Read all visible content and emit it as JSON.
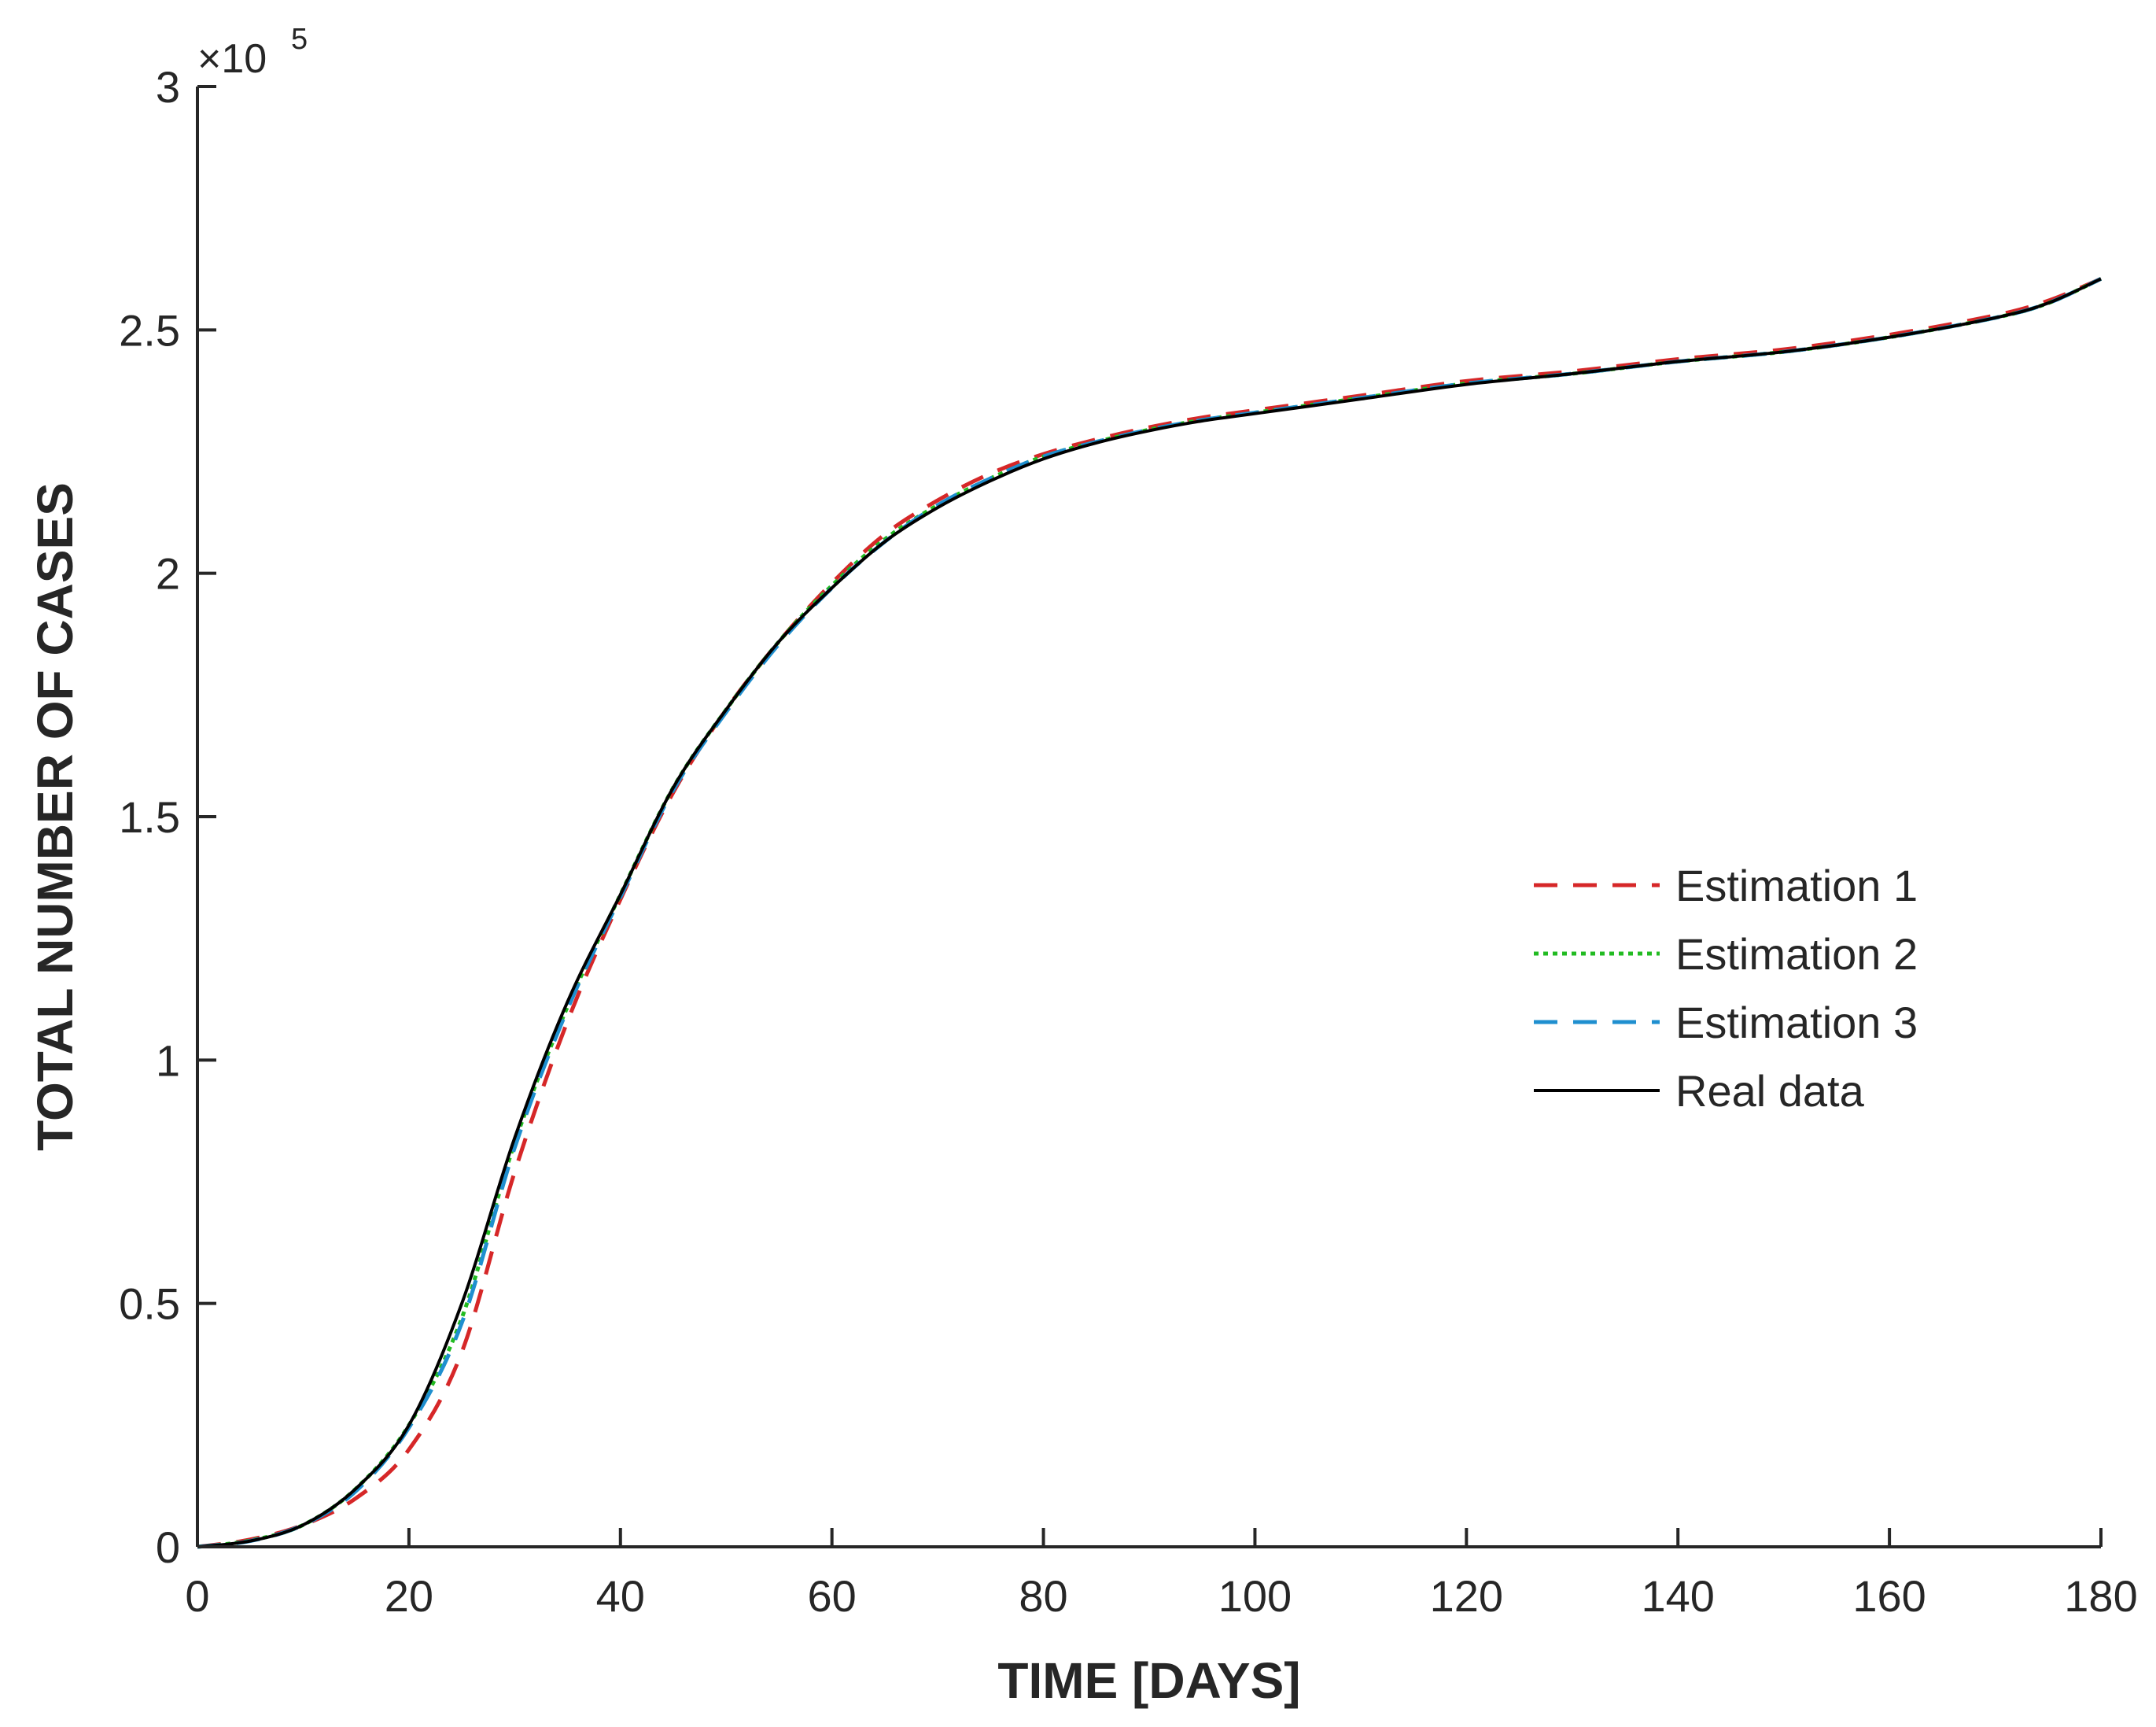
{
  "chart_data": {
    "type": "line",
    "title": "",
    "xlabel": "TIME [DAYS]",
    "ylabel": "TOTAL NUMBER OF CASES",
    "xlim": [
      0,
      180
    ],
    "ylim": [
      0,
      3
    ],
    "y_multiplier_base": "×10",
    "y_multiplier_exp": "5",
    "x_ticks": [
      "0",
      "20",
      "40",
      "60",
      "80",
      "100",
      "120",
      "140",
      "160",
      "180"
    ],
    "y_ticks": [
      "0",
      "0.5",
      "1",
      "1.5",
      "2",
      "2.5",
      "3"
    ],
    "grid": false,
    "legend_position": "right",
    "x": [
      0,
      5,
      10,
      15,
      20,
      25,
      30,
      35,
      40,
      45,
      50,
      55,
      60,
      65,
      70,
      75,
      80,
      85,
      90,
      95,
      100,
      110,
      120,
      130,
      140,
      150,
      160,
      170,
      175,
      180
    ],
    "series": [
      {
        "name": "Estimation 1",
        "color": "#d62728",
        "style": "dashed",
        "values": [
          0.0,
          0.015,
          0.045,
          0.1,
          0.2,
          0.4,
          0.77,
          1.08,
          1.33,
          1.55,
          1.72,
          1.86,
          1.98,
          2.08,
          2.15,
          2.205,
          2.245,
          2.275,
          2.3,
          2.32,
          2.335,
          2.365,
          2.395,
          2.415,
          2.44,
          2.46,
          2.49,
          2.53,
          2.56,
          2.605
        ]
      },
      {
        "name": "Estimation 2",
        "color": "#22bb22",
        "style": "dotted",
        "values": [
          0.0,
          0.013,
          0.045,
          0.12,
          0.25,
          0.47,
          0.83,
          1.11,
          1.34,
          1.56,
          1.72,
          1.86,
          1.975,
          2.07,
          2.14,
          2.195,
          2.24,
          2.27,
          2.295,
          2.315,
          2.33,
          2.36,
          2.39,
          2.41,
          2.435,
          2.455,
          2.485,
          2.525,
          2.555,
          2.605
        ]
      },
      {
        "name": "Estimation 3",
        "color": "#1f8fcf",
        "style": "dashed",
        "values": [
          0.0,
          0.012,
          0.045,
          0.115,
          0.245,
          0.46,
          0.82,
          1.105,
          1.335,
          1.555,
          1.715,
          1.855,
          1.97,
          2.065,
          2.14,
          2.195,
          2.24,
          2.27,
          2.295,
          2.315,
          2.33,
          2.36,
          2.39,
          2.41,
          2.435,
          2.455,
          2.485,
          2.525,
          2.555,
          2.605
        ]
      },
      {
        "name": "Real data",
        "color": "#000000",
        "style": "solid",
        "values": [
          0.0,
          0.012,
          0.045,
          0.12,
          0.25,
          0.5,
          0.84,
          1.12,
          1.34,
          1.56,
          1.72,
          1.86,
          1.97,
          2.065,
          2.135,
          2.19,
          2.235,
          2.268,
          2.293,
          2.313,
          2.328,
          2.358,
          2.388,
          2.41,
          2.435,
          2.455,
          2.485,
          2.525,
          2.555,
          2.605
        ]
      }
    ]
  }
}
